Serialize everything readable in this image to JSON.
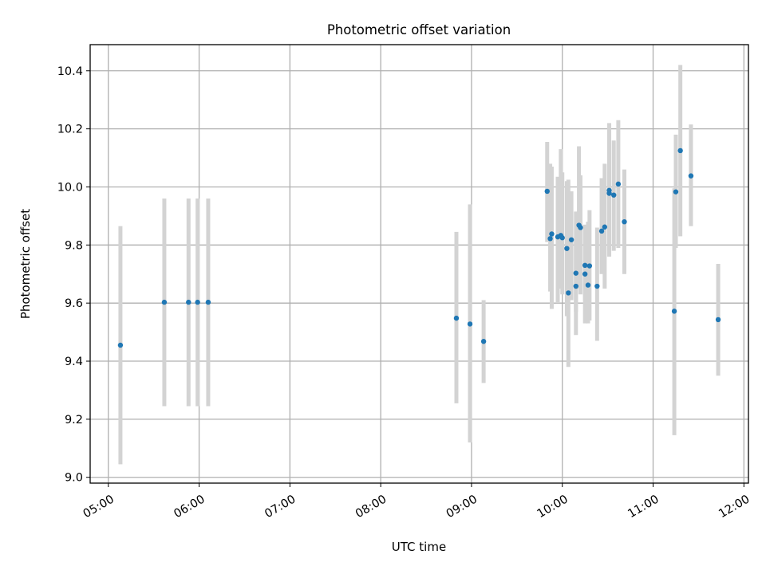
{
  "chart_data": {
    "type": "scatter",
    "title": "Photometric offset variation",
    "xlabel": "UTC time",
    "ylabel": "Photometric offset",
    "x_axis": "time",
    "xlim": [
      "04:48",
      "12:03"
    ],
    "ylim": [
      8.98,
      10.49
    ],
    "grid": true,
    "legend": "none",
    "marker_color": "#1f77b4",
    "errorbar_color": "#d3d3d3",
    "x_ticks": [
      "05:00",
      "06:00",
      "07:00",
      "08:00",
      "09:00",
      "10:00",
      "11:00",
      "12:00"
    ],
    "y_ticks": [
      "9.0",
      "9.2",
      "9.4",
      "9.6",
      "9.8",
      "10.0",
      "10.2",
      "10.4"
    ],
    "series": [
      {
        "points": [
          {
            "x": "05:08",
            "y": 9.455,
            "err_low": 9.045,
            "err_high": 9.865
          },
          {
            "x": "05:37",
            "y": 9.603,
            "err_low": 9.245,
            "err_high": 9.96
          },
          {
            "x": "05:53",
            "y": 9.603,
            "err_low": 9.245,
            "err_high": 9.96
          },
          {
            "x": "05:59",
            "y": 9.603,
            "err_low": 9.245,
            "err_high": 9.96
          },
          {
            "x": "06:06",
            "y": 9.603,
            "err_low": 9.245,
            "err_high": 9.96
          },
          {
            "x": "08:50",
            "y": 9.548,
            "err_low": 9.255,
            "err_high": 9.845
          },
          {
            "x": "08:59",
            "y": 9.528,
            "err_low": 9.12,
            "err_high": 9.94
          },
          {
            "x": "09:08",
            "y": 9.468,
            "err_low": 9.325,
            "err_high": 9.61
          },
          {
            "x": "09:50",
            "y": 9.985,
            "err_low": 9.81,
            "err_high": 10.155
          },
          {
            "x": "09:52",
            "y": 9.822,
            "err_low": 9.64,
            "err_high": 10.08
          },
          {
            "x": "09:53",
            "y": 9.838,
            "err_low": 9.58,
            "err_high": 10.07
          },
          {
            "x": "09:57",
            "y": 9.828,
            "err_low": 9.6,
            "err_high": 10.035
          },
          {
            "x": "09:59",
            "y": 9.833,
            "err_low": 9.65,
            "err_high": 10.13
          },
          {
            "x": "10:00",
            "y": 9.825,
            "err_low": 9.63,
            "err_high": 10.05
          },
          {
            "x": "10:03",
            "y": 9.788,
            "err_low": 9.555,
            "err_high": 10.02
          },
          {
            "x": "10:04",
            "y": 9.635,
            "err_low": 9.38,
            "err_high": 10.025
          },
          {
            "x": "10:06",
            "y": 9.818,
            "err_low": 9.61,
            "err_high": 9.985
          },
          {
            "x": "10:09",
            "y": 9.658,
            "err_low": 9.49,
            "err_high": 9.915
          },
          {
            "x": "10:09",
            "y": 9.703,
            "err_low": 9.57,
            "err_high": 9.82
          },
          {
            "x": "10:11",
            "y": 9.868,
            "err_low": 9.65,
            "err_high": 10.14
          },
          {
            "x": "10:12",
            "y": 9.86,
            "err_low": 9.63,
            "err_high": 10.04
          },
          {
            "x": "10:15",
            "y": 9.73,
            "err_low": 9.61,
            "err_high": 9.87
          },
          {
            "x": "10:15",
            "y": 9.7,
            "err_low": 9.53,
            "err_high": 9.87
          },
          {
            "x": "10:17",
            "y": 9.662,
            "err_low": 9.53,
            "err_high": 9.88
          },
          {
            "x": "10:18",
            "y": 9.728,
            "err_low": 9.54,
            "err_high": 9.92
          },
          {
            "x": "10:23",
            "y": 9.658,
            "err_low": 9.47,
            "err_high": 9.86
          },
          {
            "x": "10:26",
            "y": 9.848,
            "err_low": 9.7,
            "err_high": 10.03
          },
          {
            "x": "10:28",
            "y": 9.862,
            "err_low": 9.65,
            "err_high": 10.08
          },
          {
            "x": "10:31",
            "y": 9.988,
            "err_low": 9.78,
            "err_high": 10.22
          },
          {
            "x": "10:31",
            "y": 9.978,
            "err_low": 9.76,
            "err_high": 10.2
          },
          {
            "x": "10:34",
            "y": 9.972,
            "err_low": 9.78,
            "err_high": 10.16
          },
          {
            "x": "10:37",
            "y": 10.01,
            "err_low": 9.79,
            "err_high": 10.23
          },
          {
            "x": "10:41",
            "y": 9.88,
            "err_low": 9.7,
            "err_high": 10.06
          },
          {
            "x": "11:14",
            "y": 9.572,
            "err_low": 9.145,
            "err_high": 9.995
          },
          {
            "x": "11:15",
            "y": 9.983,
            "err_low": 9.79,
            "err_high": 10.18
          },
          {
            "x": "11:18",
            "y": 10.125,
            "err_low": 9.83,
            "err_high": 10.42
          },
          {
            "x": "11:25",
            "y": 10.038,
            "err_low": 9.865,
            "err_high": 10.215
          },
          {
            "x": "11:43",
            "y": 9.543,
            "err_low": 9.35,
            "err_high": 9.735
          }
        ]
      }
    ]
  }
}
